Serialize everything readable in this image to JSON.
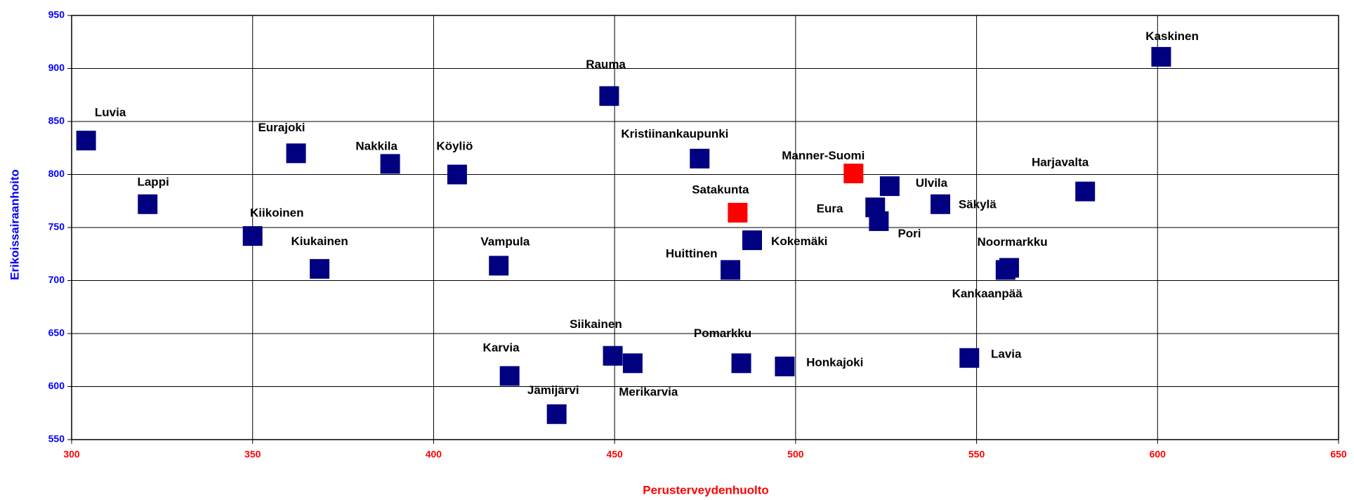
{
  "chart_data": {
    "type": "scatter",
    "x_label": "Perusterveydenhuolto",
    "y_label": "Erikoissairaanhoito",
    "xlim": [
      300,
      650
    ],
    "xticks": [
      300,
      350,
      400,
      450,
      500,
      550,
      600,
      650
    ],
    "ylim": [
      550,
      950
    ],
    "yticks": [
      550,
      600,
      650,
      700,
      750,
      800,
      850,
      900,
      950
    ],
    "grid": true,
    "points": [
      {
        "label": "Luvia",
        "x": 304,
        "y": 832,
        "color": "#000080"
      },
      {
        "label": "Lappi",
        "x": 321,
        "y": 772,
        "color": "#000080"
      },
      {
        "label": "Eurajoki",
        "x": 362,
        "y": 820,
        "color": "#000080"
      },
      {
        "label": "Nakkila",
        "x": 388,
        "y": 810,
        "color": "#000080"
      },
      {
        "label": "Köyliö",
        "x": 406.5,
        "y": 800,
        "color": "#000080"
      },
      {
        "label": "Kiikoinen",
        "x": 350,
        "y": 742,
        "color": "#000080"
      },
      {
        "label": "Kiukainen",
        "x": 368.5,
        "y": 711,
        "color": "#000080"
      },
      {
        "label": "Vampula",
        "x": 418,
        "y": 714,
        "color": "#000080"
      },
      {
        "label": "Rauma",
        "x": 448.5,
        "y": 874,
        "color": "#000080"
      },
      {
        "label": "Kristiinankaupunki",
        "x": 473.5,
        "y": 815,
        "color": "#000080"
      },
      {
        "label": "Satakunta",
        "x": 484,
        "y": 764,
        "color": "#ff0000"
      },
      {
        "label": "Manner-Suomi",
        "x": 516,
        "y": 801,
        "color": "#ff0000"
      },
      {
        "label": "Ulvila",
        "x": 526,
        "y": 789,
        "color": "#000080"
      },
      {
        "label": "Eura",
        "x": 522,
        "y": 769,
        "color": "#000080"
      },
      {
        "label": "Pori",
        "x": 523,
        "y": 756,
        "color": "#000080"
      },
      {
        "label": "Säkylä",
        "x": 540,
        "y": 772,
        "color": "#000080"
      },
      {
        "label": "Harjavalta",
        "x": 580,
        "y": 784,
        "color": "#000080"
      },
      {
        "label": "Kaskinen",
        "x": 601,
        "y": 911,
        "color": "#000080"
      },
      {
        "label": "Kokemäki",
        "x": 488,
        "y": 738,
        "color": "#000080"
      },
      {
        "label": "Huittinen",
        "x": 482,
        "y": 710,
        "color": "#000080"
      },
      {
        "label": "Noormarkku",
        "x": 559,
        "y": 712,
        "color": "#000080"
      },
      {
        "label": "Kankaanpää",
        "x": 558,
        "y": 710,
        "color": "#000080"
      },
      {
        "label": "Siikainen",
        "x": 449.5,
        "y": 629,
        "color": "#000080"
      },
      {
        "label": "Merikarvia",
        "x": 455,
        "y": 622,
        "color": "#000080"
      },
      {
        "label": "Karvia",
        "x": 421,
        "y": 610,
        "color": "#000080"
      },
      {
        "label": "Jämijärvi",
        "x": 434,
        "y": 574,
        "color": "#000080"
      },
      {
        "label": "Pomarkku",
        "x": 485,
        "y": 622,
        "color": "#000080"
      },
      {
        "label": "Honkajoki",
        "x": 497,
        "y": 619,
        "color": "#000080"
      },
      {
        "label": "Lavia",
        "x": 548,
        "y": 627,
        "color": "#000080"
      }
    ]
  }
}
